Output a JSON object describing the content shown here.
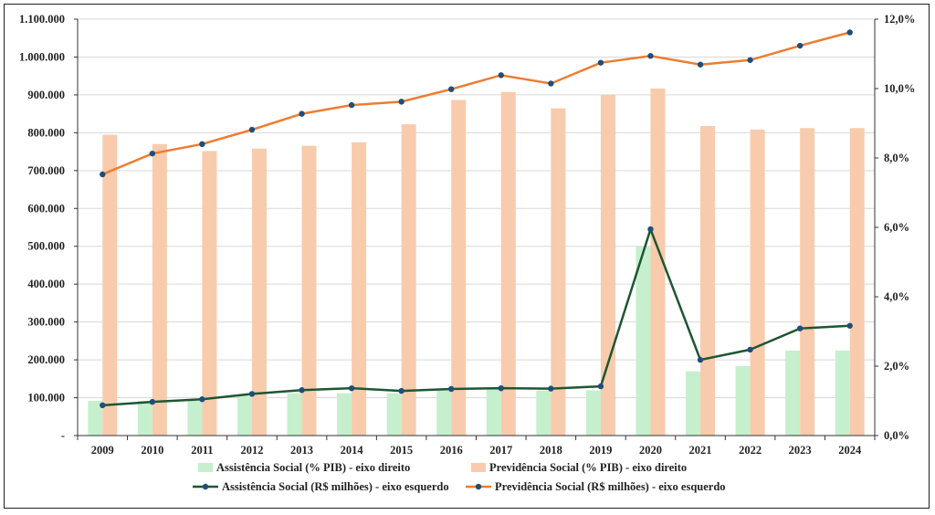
{
  "chart_data": {
    "type": "bar",
    "categories": [
      "2009",
      "2010",
      "2011",
      "2012",
      "2013",
      "2014",
      "2015",
      "2016",
      "2017",
      "2018",
      "2019",
      "2020",
      "2021",
      "2022",
      "2023",
      "2024"
    ],
    "left_axis": {
      "ylim": [
        0,
        1100000
      ],
      "ticks": [
        0,
        100000,
        200000,
        300000,
        400000,
        500000,
        600000,
        700000,
        800000,
        900000,
        1000000,
        1100000
      ],
      "tick_labels": [
        "-",
        "100.000",
        "200.000",
        "300.000",
        "400.000",
        "500.000",
        "600.000",
        "700.000",
        "800.000",
        "900.000",
        "1.000.000",
        "1.100.000"
      ]
    },
    "right_axis": {
      "ylim": [
        0,
        12
      ],
      "ticks": [
        0,
        2,
        4,
        6,
        8,
        10,
        12
      ],
      "tick_labels": [
        "0,0%",
        "2,0%",
        "4,0%",
        "6,0%",
        "8,0%",
        "10,0%",
        "12,0%"
      ]
    },
    "grid": "horizontal",
    "legend_position": "bottom",
    "series": [
      {
        "name": "Assistência Social (% PIB) - eixo direito",
        "kind": "bar",
        "axis": "right",
        "color": "#c6efce",
        "values": [
          1.0,
          1.0,
          1.0,
          1.15,
          1.22,
          1.22,
          1.22,
          1.35,
          1.35,
          1.3,
          1.3,
          5.45,
          1.85,
          2.0,
          2.45,
          2.45
        ]
      },
      {
        "name": "Previdência Social (% PIB) - eixo direito",
        "kind": "bar",
        "axis": "right",
        "color": "#f8cbad",
        "values": [
          8.67,
          8.4,
          8.2,
          8.27,
          8.35,
          8.45,
          8.97,
          9.67,
          9.9,
          9.43,
          9.82,
          10.0,
          8.92,
          8.82,
          8.86,
          8.86
        ]
      },
      {
        "name": "Assistência Social (R$ milhões) - eixo esquerdo",
        "kind": "line",
        "axis": "left",
        "color": "#1e5631",
        "marker_color": "#1f4e79",
        "values": [
          80000,
          89000,
          96000,
          110000,
          120000,
          125000,
          118000,
          123000,
          125000,
          124000,
          130000,
          545000,
          200000,
          227000,
          283000,
          290000
        ]
      },
      {
        "name": "Previdência Social (R$ milhões) - eixo esquerdo",
        "kind": "line",
        "axis": "left",
        "color": "#ed7d31",
        "marker_color": "#1f4e79",
        "values": [
          690000,
          745000,
          770000,
          808000,
          850000,
          873000,
          882000,
          915000,
          952000,
          930000,
          985000,
          1003000,
          980000,
          992000,
          1030000,
          1065000
        ]
      }
    ]
  }
}
